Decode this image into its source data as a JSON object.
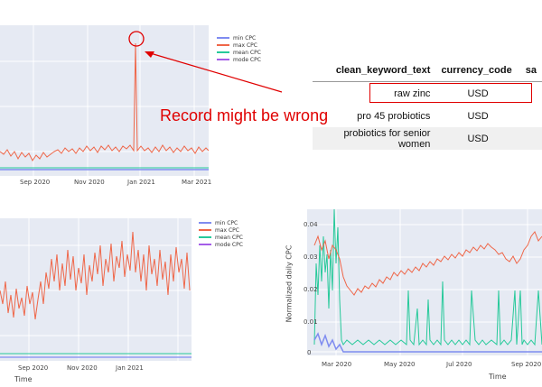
{
  "colors": {
    "min": "#7f8cf0",
    "max": "#ef6648",
    "mean": "#26c99a",
    "mode": "#a45de8",
    "plot_bg": "#e6eaf3",
    "annotation": "#e00000"
  },
  "annotation": {
    "text": "Record might be wrong"
  },
  "table": {
    "columns": [
      "clean_keyword_text",
      "currency_code",
      "sa"
    ],
    "rows": [
      {
        "keyword": "raw zinc",
        "currency": "USD",
        "highlighted": true
      },
      {
        "keyword": "pro 45 probiotics",
        "currency": "USD",
        "highlighted": false
      },
      {
        "keyword": "probiotics for senior women",
        "currency": "USD",
        "highlighted": false
      }
    ]
  },
  "charts": {
    "top_left": {
      "x_ticks": [
        "Sep 2020",
        "Nov 2020",
        "Jan 2021",
        "Mar 2021"
      ],
      "legend": [
        "min CPC",
        "max CPC",
        "mean CPC",
        "mode CPC"
      ]
    },
    "bottom_left": {
      "x_ticks": [
        "Sep 2020",
        "Nov 2020",
        "Jan 2021"
      ],
      "x_title": "Time",
      "legend": [
        "min CPC",
        "max CPC",
        "mean CPC",
        "mode CPC"
      ]
    },
    "bottom_right": {
      "x_ticks": [
        "Mar 2020",
        "May 2020",
        "Jul 2020",
        "Sep 2020"
      ],
      "y_ticks": [
        "0.04",
        "0.03",
        "0.02",
        "0.01",
        "0"
      ],
      "x_title": "Time",
      "y_title": "Normalized daily CPC"
    }
  },
  "chart_data": [
    {
      "type": "line",
      "description_scope": "top-left chart",
      "series": [
        {
          "name": "min CPC",
          "color": "#7f8cf0"
        },
        {
          "name": "max CPC",
          "color": "#ef6648"
        },
        {
          "name": "mean CPC",
          "color": "#26c99a"
        },
        {
          "name": "mode CPC",
          "color": "#a45de8"
        }
      ],
      "x_ticks": [
        "Sep 2020",
        "Nov 2020",
        "Jan 2021",
        "Mar 2021"
      ]
    },
    {
      "type": "line",
      "description_scope": "bottom-left chart",
      "series": [
        {
          "name": "min CPC",
          "color": "#7f8cf0"
        },
        {
          "name": "max CPC",
          "color": "#ef6648"
        },
        {
          "name": "mean CPC",
          "color": "#26c99a"
        },
        {
          "name": "mode CPC",
          "color": "#a45de8"
        }
      ],
      "x_ticks": [
        "Sep 2020",
        "Nov 2020",
        "Jan 2021"
      ],
      "xlabel": "Time"
    },
    {
      "type": "line",
      "description_scope": "bottom-right chart",
      "x_ticks": [
        "Mar 2020",
        "May 2020",
        "Jul 2020",
        "Sep 2020"
      ],
      "y_ticks": [
        0.04,
        0.03,
        0.02,
        0.01,
        0
      ],
      "ylim": [
        0,
        0.045
      ],
      "xlabel": "Time",
      "ylabel": "Normalized daily CPC"
    }
  ]
}
